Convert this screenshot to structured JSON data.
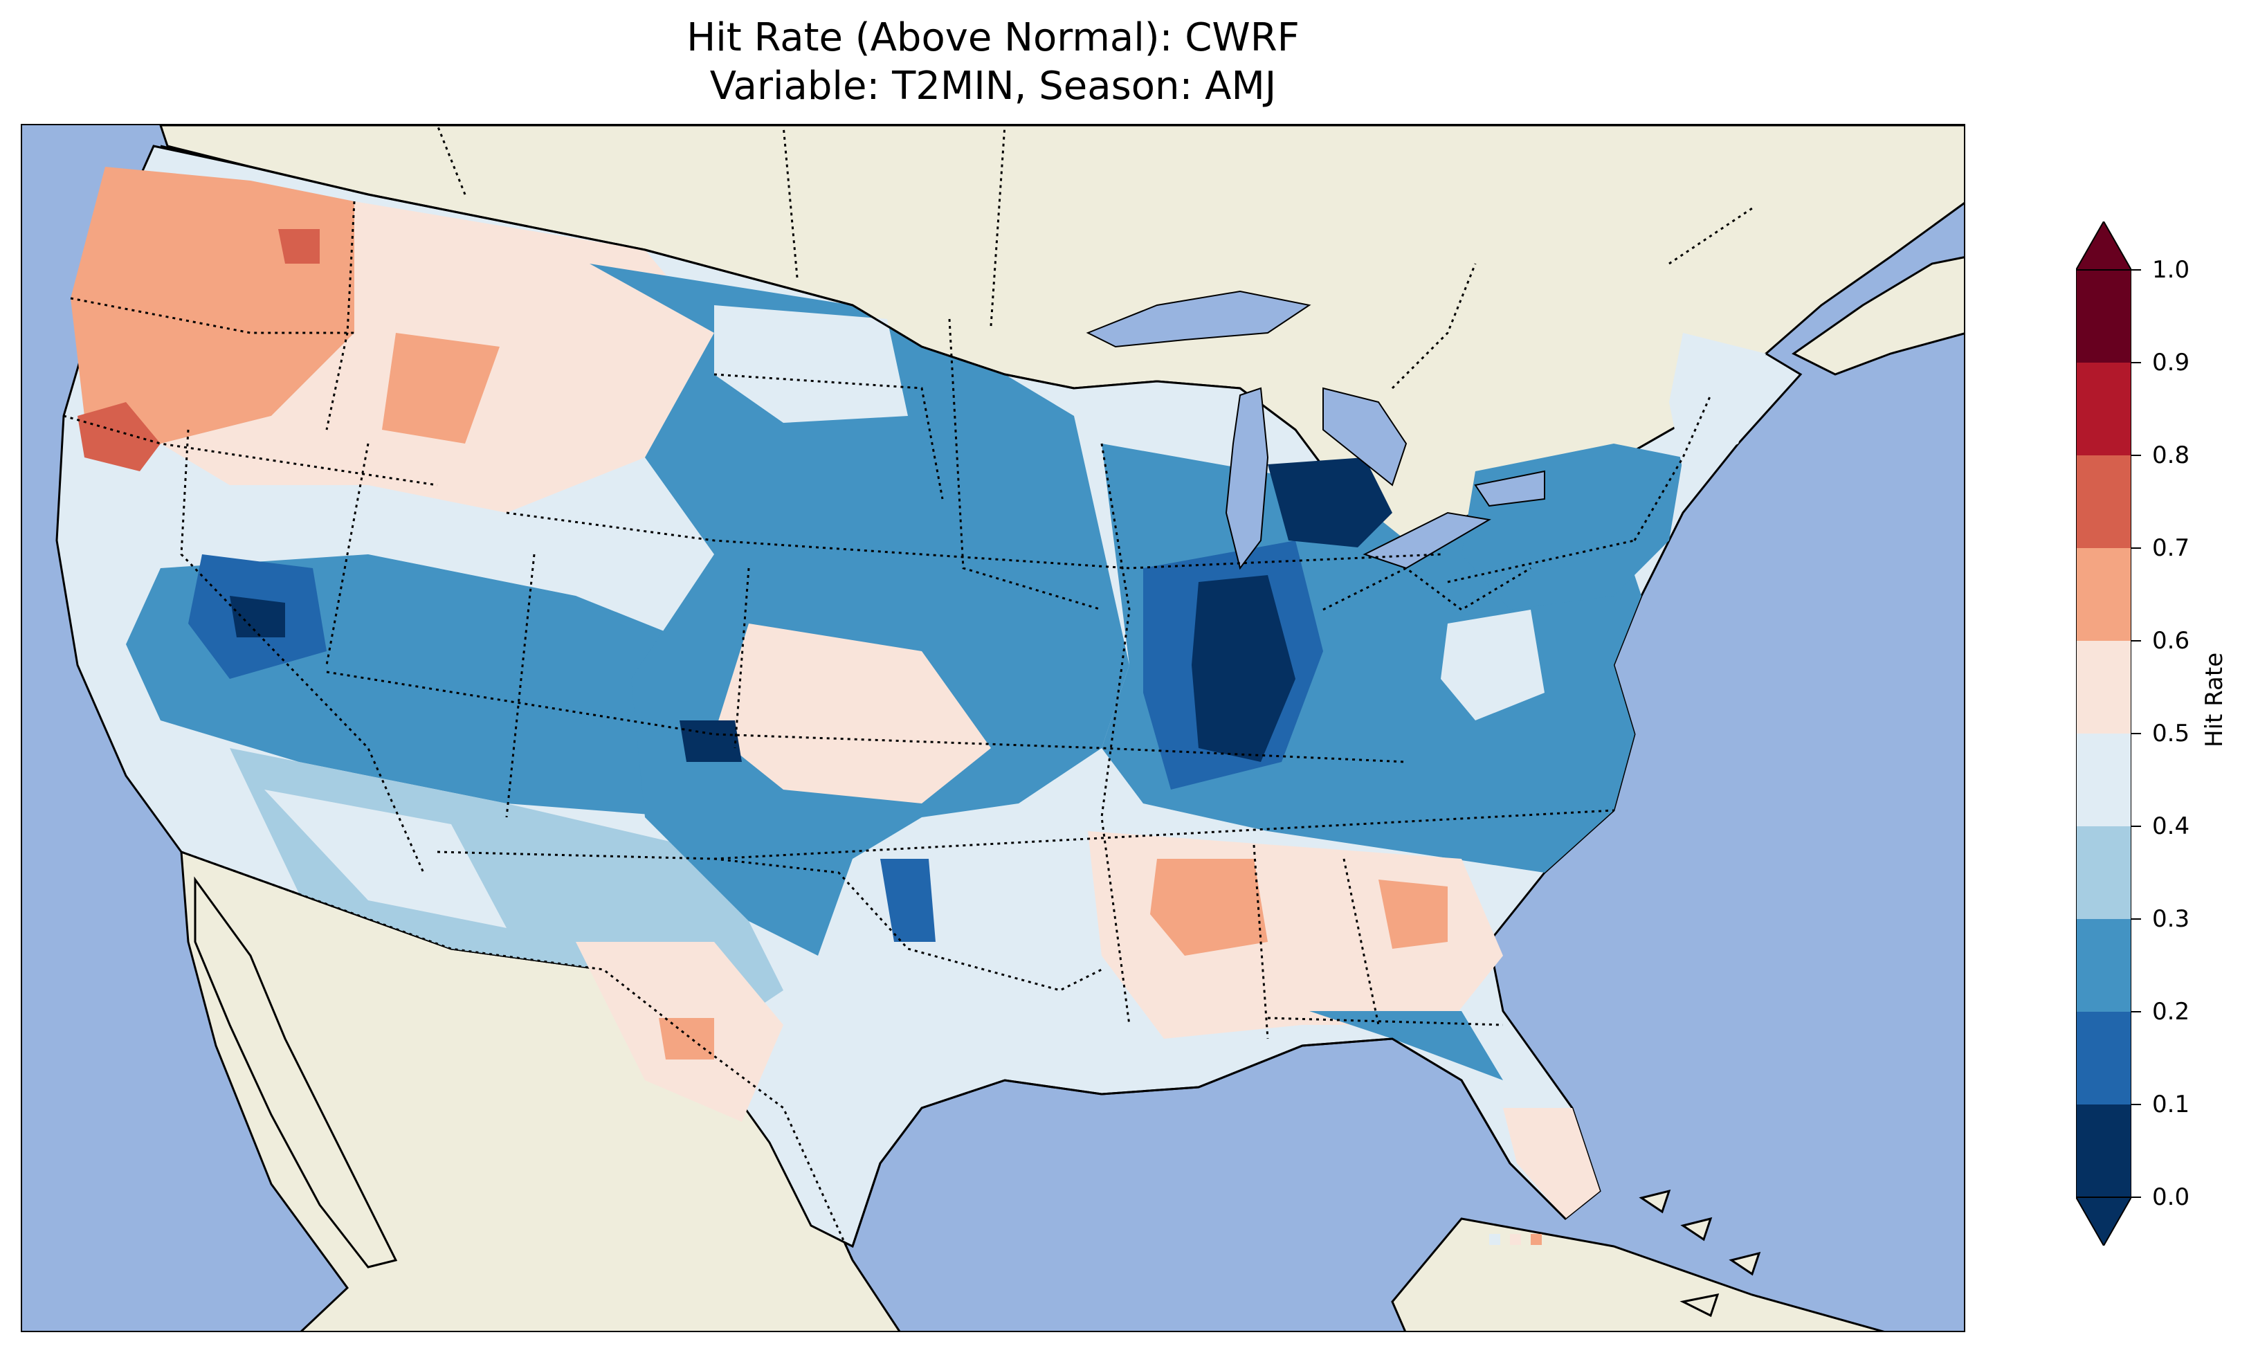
{
  "title": {
    "line1": "Hit Rate (Above Normal): CWRF",
    "line2": "Variable: T2MIN, Season: AMJ"
  },
  "map": {
    "ocean_color": "#98b4e0",
    "land_color": "#efeddc",
    "lake_color": "#98b4e0",
    "coastline_color": "#000000",
    "state_border_style": "dotted"
  },
  "colorbar": {
    "label": "Hit Rate",
    "ticks": [
      "1.0",
      "0.9",
      "0.8",
      "0.7",
      "0.6",
      "0.5",
      "0.4",
      "0.3",
      "0.2",
      "0.1",
      "0.0"
    ],
    "bins": [
      {
        "range": [
          0.0,
          0.1
        ],
        "color": "#053061"
      },
      {
        "range": [
          0.1,
          0.2
        ],
        "color": "#2166ac"
      },
      {
        "range": [
          0.2,
          0.3
        ],
        "color": "#4393c3"
      },
      {
        "range": [
          0.3,
          0.4
        ],
        "color": "#a6cde2"
      },
      {
        "range": [
          0.4,
          0.5
        ],
        "color": "#e0ecf4"
      },
      {
        "range": [
          0.5,
          0.6
        ],
        "color": "#f9e4da"
      },
      {
        "range": [
          0.6,
          0.7
        ],
        "color": "#f4a582"
      },
      {
        "range": [
          0.7,
          0.8
        ],
        "color": "#d6604d"
      },
      {
        "range": [
          0.8,
          0.9
        ],
        "color": "#b2182b"
      },
      {
        "range": [
          0.9,
          1.0
        ],
        "color": "#67001f"
      }
    ],
    "extend": "both"
  }
}
